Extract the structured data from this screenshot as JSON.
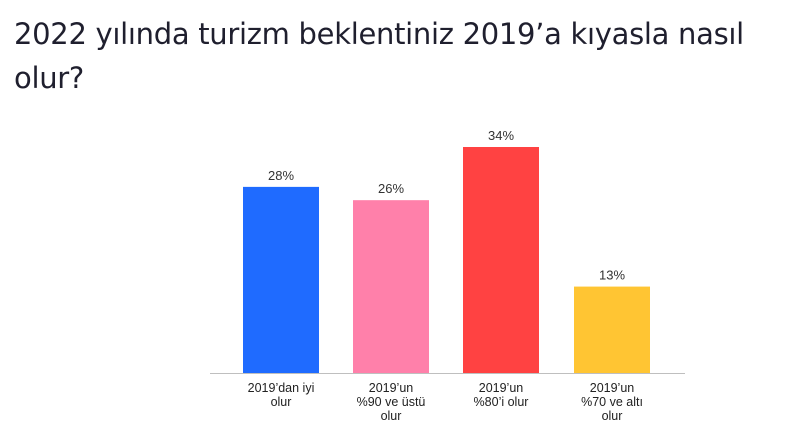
{
  "chart_data": {
    "type": "bar",
    "title": "2022 yılında turizm beklentiniz 2019’a kıyasla nasıl olur?",
    "categories": [
      [
        "2019’dan iyi",
        "olur"
      ],
      [
        "2019’un",
        "%90 ve üstü",
        "olur"
      ],
      [
        "2019’un",
        "%80’i olur"
      ],
      [
        "2019’un",
        "%70 ve altı",
        "olur"
      ]
    ],
    "values": [
      28,
      26,
      34,
      13
    ],
    "value_labels": [
      "28%",
      "26%",
      "34%",
      "13%"
    ],
    "colors": [
      "#1f6bff",
      "#ff80aa",
      "#ff4242",
      "#ffc533"
    ],
    "ylim": [
      0,
      34
    ],
    "grid": false,
    "legend": false
  }
}
